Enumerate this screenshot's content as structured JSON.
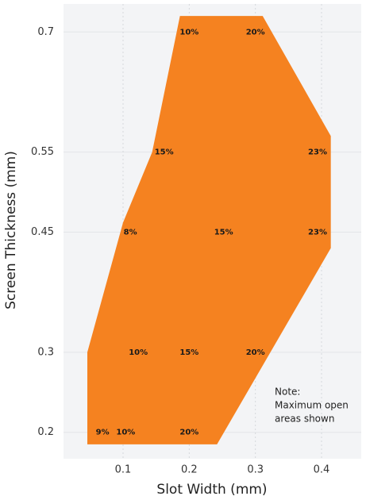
{
  "chart_data": {
    "type": "area-polygon",
    "x_label": "Slot Width (mm)",
    "y_label": "Screen Thickness (mm)",
    "xlim": [
      0.01,
      0.46
    ],
    "ylim": [
      0.17,
      0.73
    ],
    "xticks": [
      0.1,
      0.2,
      0.3,
      0.4
    ],
    "yticks": [
      0.2,
      0.3,
      0.45,
      0.55,
      0.7
    ],
    "grid": true,
    "area": {
      "color": "#f58220",
      "x": [
        0.046,
        0.046,
        0.1,
        0.144,
        0.186,
        0.311,
        0.414,
        0.414,
        0.242
      ],
      "y": [
        0.185,
        0.3,
        0.462,
        0.55,
        0.72,
        0.72,
        0.57,
        0.43,
        0.185
      ]
    },
    "labels": {
      "x": [
        0.2,
        0.3,
        0.162,
        0.394,
        0.111,
        0.252,
        0.394,
        0.123,
        0.2,
        0.3,
        0.069,
        0.104,
        0.2
      ],
      "y": [
        0.7,
        0.7,
        0.55,
        0.55,
        0.45,
        0.45,
        0.45,
        0.3,
        0.3,
        0.3,
        0.2,
        0.2,
        0.2
      ],
      "values": [
        10,
        20,
        15,
        23,
        8,
        15,
        23,
        10,
        15,
        20,
        9,
        10,
        20
      ],
      "value_labels": [
        "10%",
        "20%",
        "15%",
        "23%",
        "8%",
        "15%",
        "23%",
        "10%",
        "15%",
        "20%",
        "9%",
        "10%",
        "20%"
      ]
    },
    "note": [
      "Note:",
      "Maximum open",
      "areas shown"
    ]
  }
}
